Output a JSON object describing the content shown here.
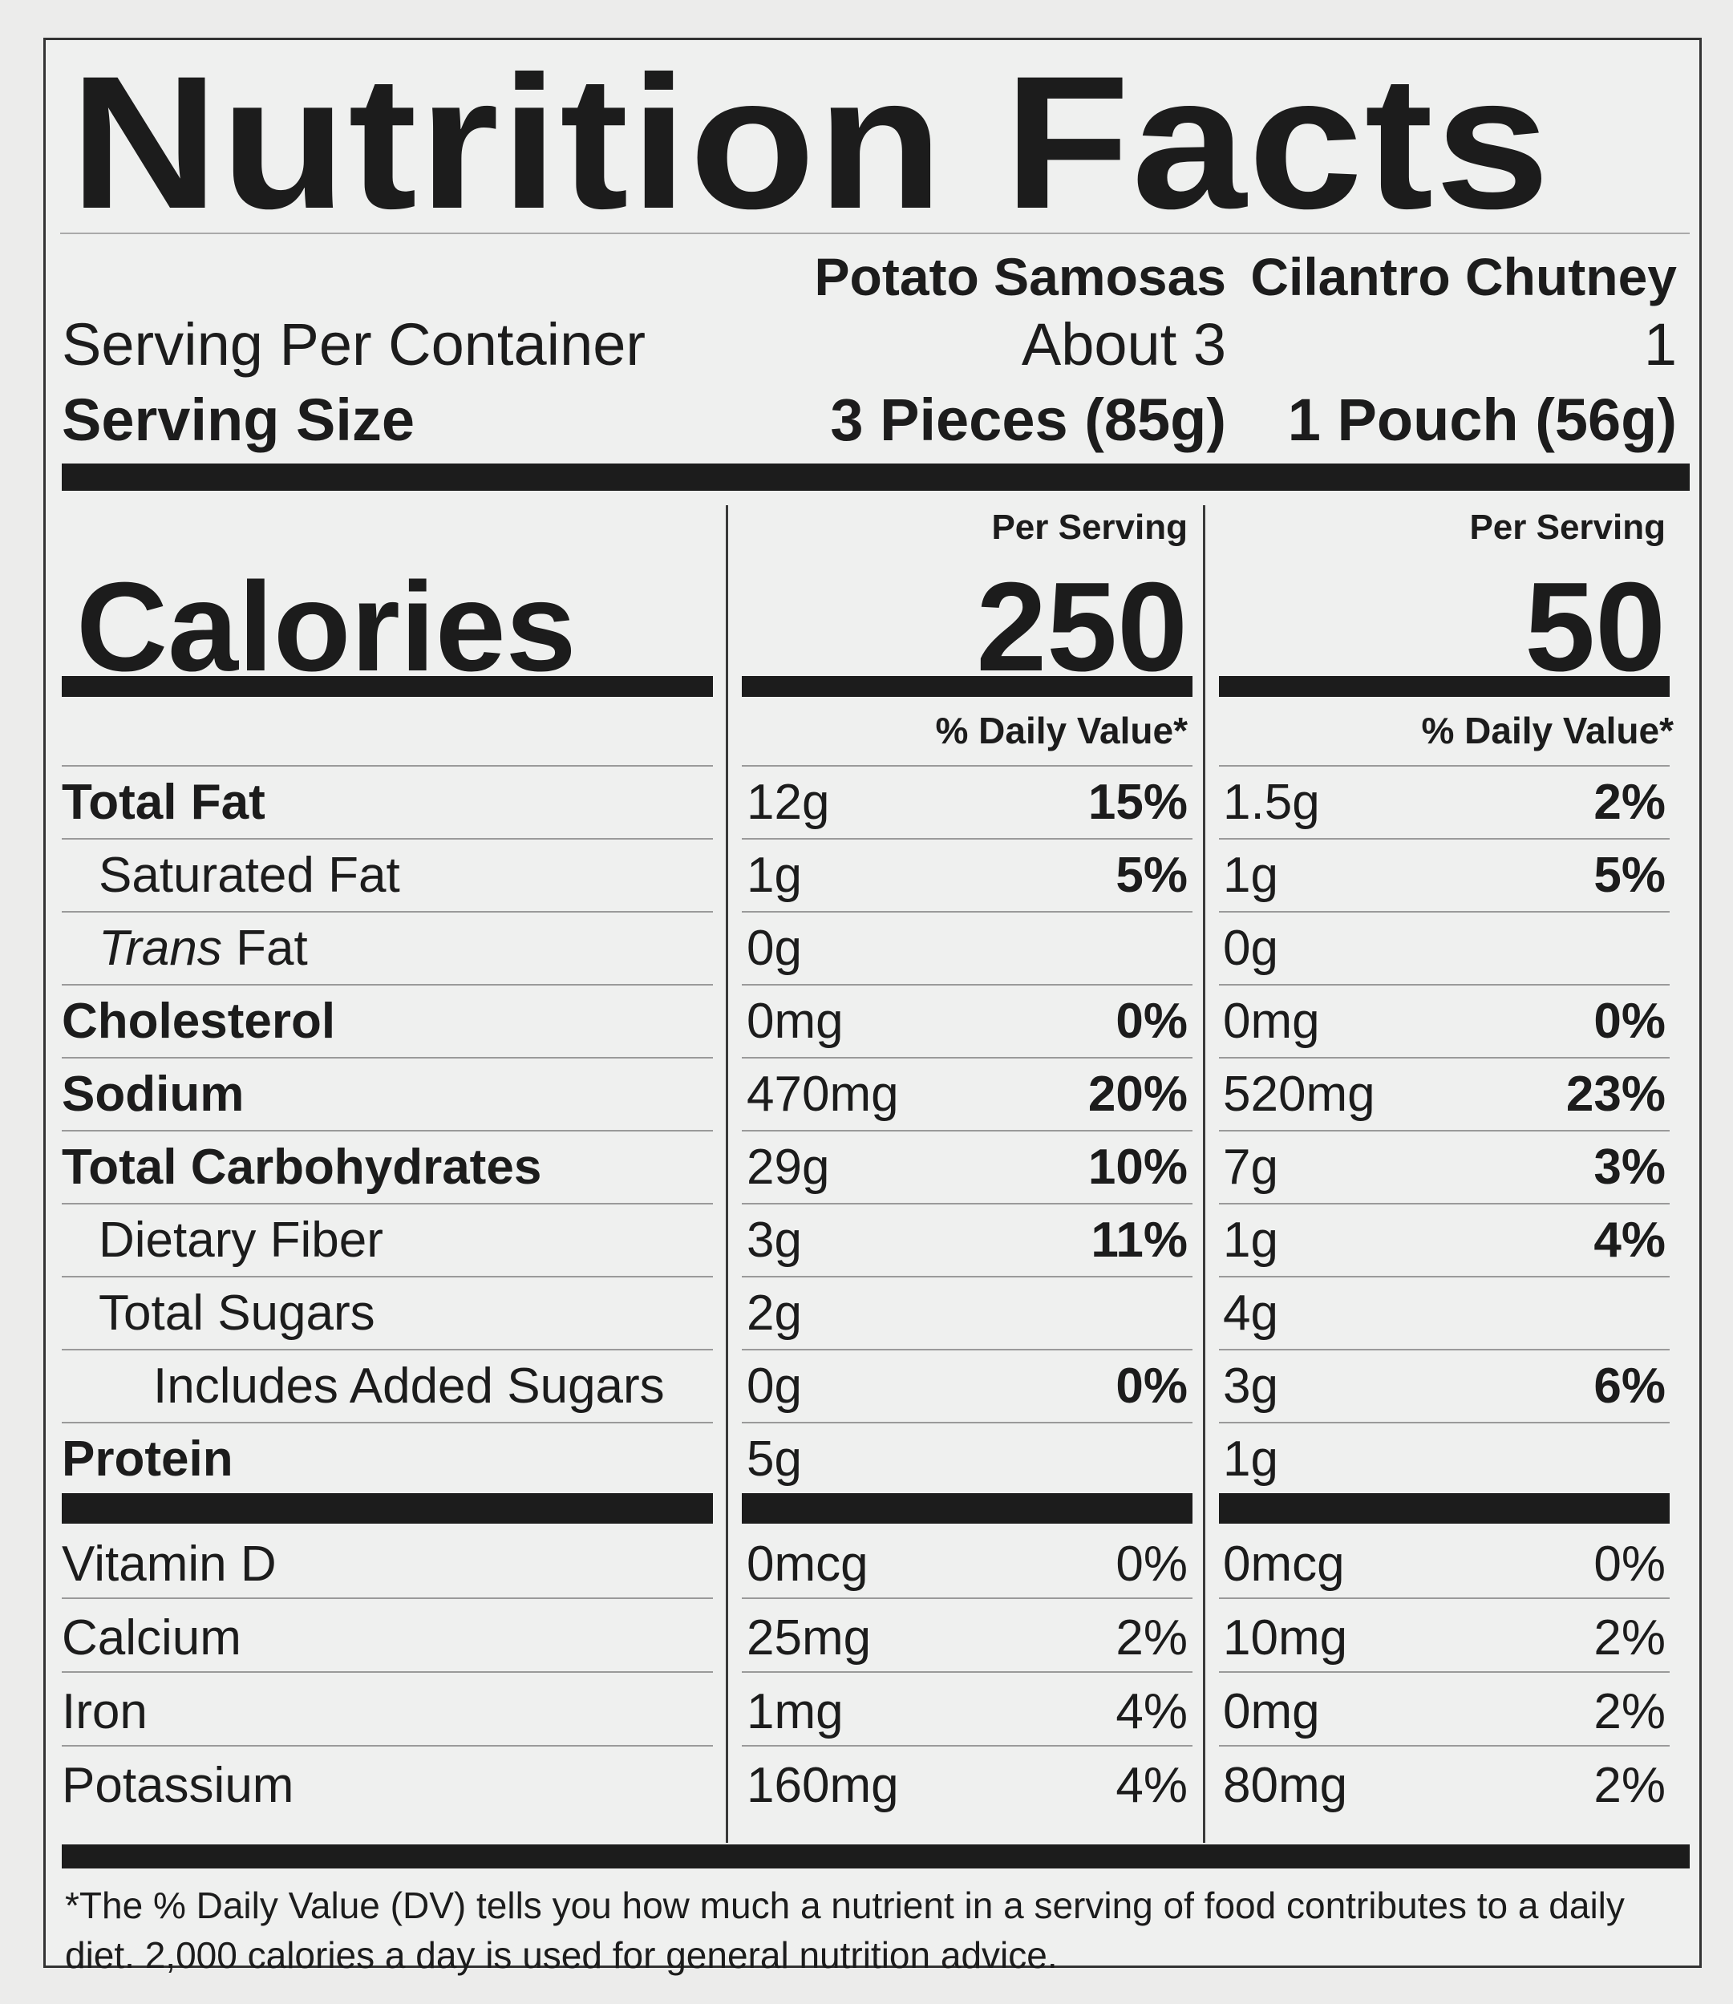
{
  "title": "Nutrition Facts",
  "products": [
    "Potato Samosas",
    "Cilantro Chutney"
  ],
  "servings": {
    "label": "Serving Per Container",
    "values": [
      "About 3",
      "1"
    ]
  },
  "serving_size": {
    "label": "Serving Size",
    "values": [
      "3 Pieces (85g)",
      "1 Pouch (56g)"
    ]
  },
  "per_serving": "Per Serving",
  "calories": {
    "label": "Calories",
    "values": [
      "250",
      "50"
    ]
  },
  "dv_header": "% Daily Value*",
  "nutrients": [
    {
      "name": "Total Fat",
      "style": "bold",
      "a_amt": "12g",
      "a_dv": "15%",
      "b_amt": "1.5g",
      "b_dv": "2%"
    },
    {
      "name": "Saturated Fat",
      "style": "indent",
      "a_amt": "1g",
      "a_dv": "5%",
      "b_amt": "1g",
      "b_dv": "5%"
    },
    {
      "name_italic": "Trans",
      "name": " Fat",
      "style": "indent",
      "a_amt": "0g",
      "a_dv": "",
      "b_amt": "0g",
      "b_dv": ""
    },
    {
      "name": "Cholesterol",
      "style": "bold",
      "a_amt": "0mg",
      "a_dv": "0%",
      "b_amt": "0mg",
      "b_dv": "0%"
    },
    {
      "name": "Sodium",
      "style": "bold",
      "a_amt": "470mg",
      "a_dv": "20%",
      "b_amt": "520mg",
      "b_dv": "23%"
    },
    {
      "name": "Total Carbohydrates",
      "style": "bold",
      "a_amt": "29g",
      "a_dv": "10%",
      "b_amt": "7g",
      "b_dv": "3%"
    },
    {
      "name": "Dietary Fiber",
      "style": "indent",
      "a_amt": "3g",
      "a_dv": "11%",
      "b_amt": "1g",
      "b_dv": "4%"
    },
    {
      "name": "Total Sugars",
      "style": "indent",
      "a_amt": "2g",
      "a_dv": "",
      "b_amt": "4g",
      "b_dv": ""
    },
    {
      "name": "Includes Added Sugars",
      "style": "indent2",
      "a_amt": "0g",
      "a_dv": "0%",
      "b_amt": "3g",
      "b_dv": "6%"
    },
    {
      "name": "Protein",
      "style": "bold",
      "a_amt": "5g",
      "a_dv": "",
      "b_amt": "1g",
      "b_dv": ""
    }
  ],
  "vitamins": [
    {
      "name": "Vitamin D",
      "a_amt": "0mcg",
      "a_dv": "0%",
      "b_amt": "0mcg",
      "b_dv": "0%"
    },
    {
      "name": "Calcium",
      "a_amt": "25mg",
      "a_dv": "2%",
      "b_amt": "10mg",
      "b_dv": "2%"
    },
    {
      "name": "Iron",
      "a_amt": "1mg",
      "a_dv": "4%",
      "b_amt": "0mg",
      "b_dv": "2%"
    },
    {
      "name": "Potassium",
      "a_amt": "160mg",
      "a_dv": "4%",
      "b_amt": "80mg",
      "b_dv": "2%"
    }
  ],
  "footnote": "*The % Daily Value (DV) tells you how much a nutrient in a serving of food contributes to a daily diet. 2,000 calories a day is used for general nutrition advice."
}
